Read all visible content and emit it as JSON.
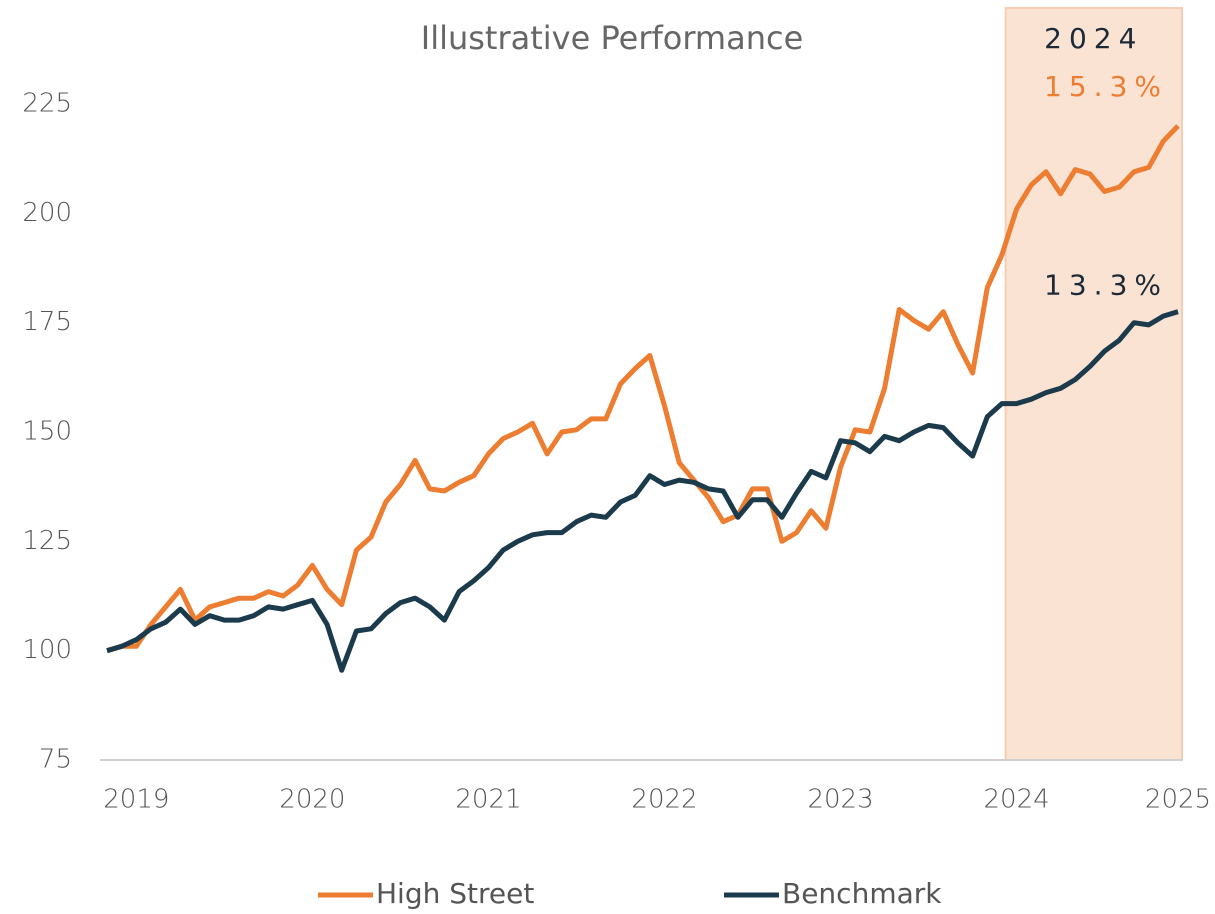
{
  "chart_data": {
    "type": "line",
    "title": "Illustrative Performance",
    "categories": [
      null,
      null,
      "2019",
      null,
      null,
      null,
      null,
      null,
      null,
      null,
      null,
      null,
      null,
      null,
      "2020",
      null,
      null,
      null,
      null,
      null,
      null,
      null,
      null,
      null,
      null,
      null,
      "2021",
      null,
      null,
      null,
      null,
      null,
      null,
      null,
      null,
      null,
      null,
      null,
      "2022",
      null,
      null,
      null,
      null,
      null,
      null,
      null,
      null,
      null,
      null,
      null,
      "2023",
      null,
      null,
      null,
      null,
      null,
      null,
      null,
      null,
      null,
      null,
      null,
      "2024",
      null,
      null,
      null,
      null,
      null,
      null,
      null,
      null,
      null,
      null,
      "2025"
    ],
    "series": [
      {
        "name": "High Street",
        "color": "#ed7d31",
        "values": [
          100,
          101,
          101,
          106,
          110,
          114,
          107,
          110,
          111,
          112,
          112,
          113.5,
          112.5,
          115,
          119.5,
          114,
          110.5,
          123,
          126,
          134,
          138,
          143.5,
          137,
          136.5,
          138.5,
          140,
          145,
          148.5,
          150,
          152,
          145,
          150,
          150.5,
          153,
          153,
          161,
          164.5,
          167.5,
          156,
          143,
          139,
          135,
          129.5,
          131,
          137,
          137,
          125,
          127,
          132,
          128,
          142,
          150.5,
          150,
          160,
          178,
          175.5,
          173.5,
          177.5,
          170,
          163.5,
          183,
          190.5,
          201,
          206.5,
          209.5,
          204.5,
          210,
          209,
          205,
          206,
          209.5,
          210.5,
          216.5,
          220
        ]
      },
      {
        "name": "Benchmark",
        "color": "#1b3a4b",
        "values": [
          100,
          101,
          102.5,
          105,
          106.5,
          109.5,
          106,
          108,
          107,
          107,
          108,
          110,
          109.5,
          110.5,
          111.5,
          106,
          95.5,
          104.5,
          105,
          108.5,
          111,
          112,
          110,
          107,
          113.5,
          116,
          119,
          123,
          125,
          126.5,
          127,
          127,
          129.5,
          131,
          130.5,
          134,
          135.5,
          140,
          138,
          139,
          138.5,
          137,
          136.5,
          130.5,
          134.5,
          134.5,
          130.5,
          136,
          141,
          139.5,
          148,
          147.5,
          145.5,
          149,
          148,
          150,
          151.5,
          151,
          147.5,
          144.5,
          153.5,
          156.5,
          156.5,
          157.5,
          159,
          160,
          162,
          165,
          168.5,
          171,
          175,
          174.5,
          176.5,
          177.5
        ]
      }
    ],
    "annotations": [
      "15.3%",
      "13.3%"
    ],
    "highlight_label": "2024",
    "ylim": [
      75,
      225
    ],
    "yticks": [
      75,
      100,
      125,
      150,
      175,
      200,
      225
    ],
    "grid": false,
    "legend": "bottom"
  }
}
